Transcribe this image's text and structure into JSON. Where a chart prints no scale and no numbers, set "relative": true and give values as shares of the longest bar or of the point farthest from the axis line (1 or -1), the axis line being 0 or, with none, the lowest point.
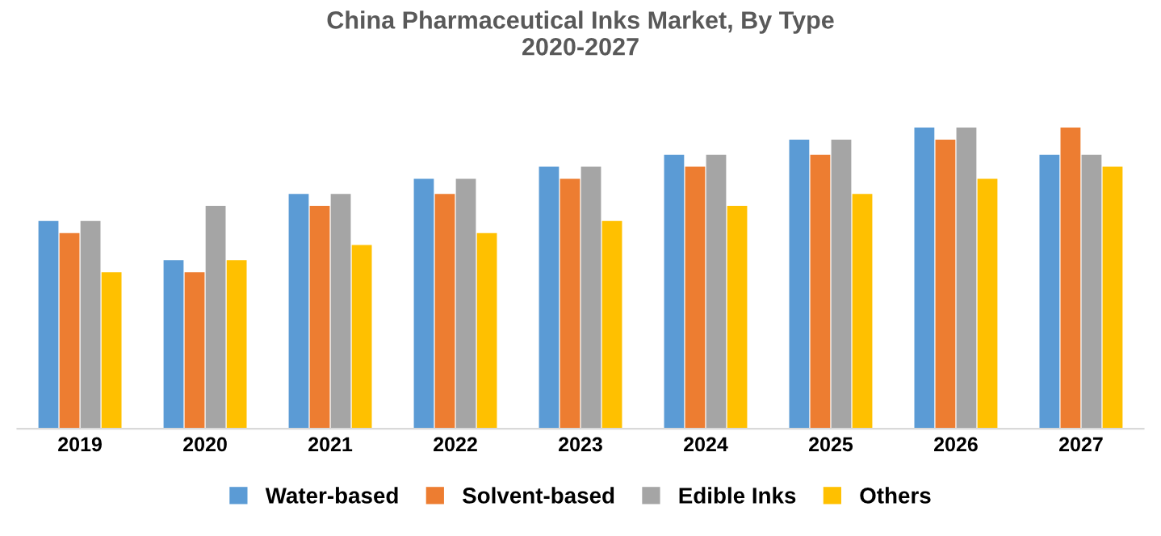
{
  "chart_data": {
    "type": "bar",
    "title": "China Pharmaceutical Inks Market, By Type\n2020-2027",
    "relative": true,
    "legend": "bottom",
    "grid": false,
    "categories": [
      "2019",
      "2020",
      "2021",
      "2022",
      "2023",
      "2024",
      "2025",
      "2026",
      "2027"
    ],
    "series": [
      {
        "name": "Water-based",
        "color": "#5b9bd5",
        "values": [
          0.69,
          0.56,
          0.78,
          0.83,
          0.87,
          0.91,
          0.96,
          1.0,
          0.91
        ]
      },
      {
        "name": "Solvent-based",
        "color": "#ed7d31",
        "values": [
          0.65,
          0.52,
          0.74,
          0.78,
          0.83,
          0.87,
          0.91,
          0.96,
          1.0
        ]
      },
      {
        "name": "Edible Inks",
        "color": "#a5a5a5",
        "values": [
          0.69,
          0.74,
          0.78,
          0.83,
          0.87,
          0.91,
          0.96,
          1.0,
          0.91
        ]
      },
      {
        "name": "Others",
        "color": "#ffc000",
        "values": [
          0.52,
          0.56,
          0.61,
          0.65,
          0.69,
          0.74,
          0.78,
          0.83,
          0.87
        ]
      }
    ]
  }
}
